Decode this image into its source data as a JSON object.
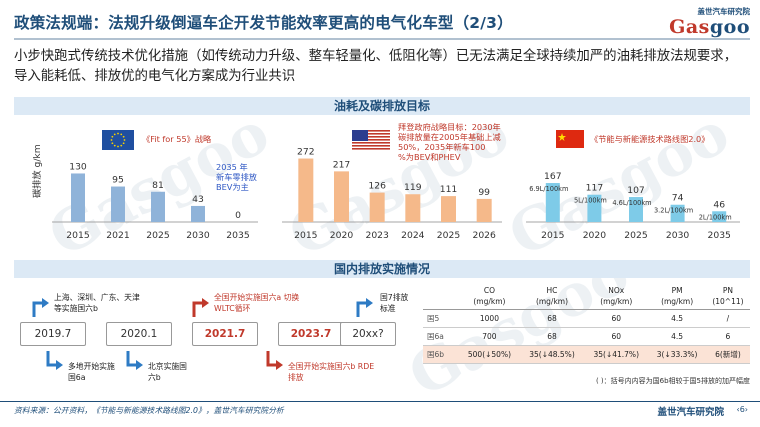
{
  "header": {
    "title": "政策法规端：法规升级倒逼车企开发节能效率更高的电气化车型（2/3）",
    "logo_cn": "盖世汽车研究院",
    "logo_en_a": "Gas",
    "logo_en_b": "goo"
  },
  "subtitle": "小步快跑式传统技术优化措施（如传统动力升级、整车轻量化、低阻化等）已无法满足全球持续加严的油耗排放法规要求，导入能耗低、排放优的电气化方案成为行业共识",
  "section1_title": "油耗及碳排放目标",
  "section2_title": "国内排放实施情况",
  "watermark": "Gasgoo",
  "colors": {
    "eu_bar": "#8fb3d9",
    "us_bar": "#f5b98a",
    "cn_bar": "#7ecbe8",
    "accent_red": "#c0392b",
    "navy": "#1f4e79"
  },
  "chart_data": [
    {
      "type": "bar",
      "region": "EU",
      "flag": "EU flag",
      "policy_note": "《Fit for 55》战略",
      "ylabel": "碳排放 g/km",
      "categories": [
        "2015",
        "2021",
        "2025",
        "2030",
        "2035"
      ],
      "values": [
        130,
        95,
        81,
        43,
        0
      ],
      "value_labels": [
        "130",
        "95",
        "81",
        "43",
        "0"
      ],
      "annotation": "2035 年 新车零排放BEV为主"
    },
    {
      "type": "bar",
      "region": "US",
      "flag": "US flag",
      "policy_note": "拜登政府战略目标：2030年碳排放量在2005年基础上减50%，2035年新车100%为BEV和PHEV",
      "categories": [
        "2015",
        "2020",
        "2023",
        "2024",
        "2025",
        "2026"
      ],
      "values": [
        272,
        217,
        126,
        119,
        111,
        99
      ],
      "value_labels": [
        "272",
        "217",
        "126",
        "119",
        "111",
        "99"
      ]
    },
    {
      "type": "bar",
      "region": "CN",
      "flag": "China flag",
      "policy_note": "《节能与新能源技术路线图2.0》",
      "categories": [
        "2015",
        "2020",
        "2025",
        "2030",
        "2035"
      ],
      "values": [
        167,
        117,
        107,
        74,
        46
      ],
      "value_labels": [
        "167",
        "117",
        "107",
        "74",
        "46"
      ],
      "fuel_labels": [
        "6.9L/100km",
        "5L/100km",
        "4.6L/100km",
        "3.2L/100km",
        "2L/100km"
      ]
    }
  ],
  "timeline": {
    "years": [
      "2019.7",
      "2020.1",
      "2021.7",
      "2023.7",
      "20xx?"
    ],
    "top_notes": [
      "上海、深圳、广东、天津等实施国六b",
      "全国开始实施国六a 切换WLTC循环",
      "国7排放标准"
    ],
    "bottom_notes": [
      "多地开始实施国6a",
      "北京实施国六b",
      "全国开始实施国六b RDE排放"
    ]
  },
  "emission_table": {
    "headers": [
      {
        "name": "CO",
        "unit": "(mg/km)"
      },
      {
        "name": "HC",
        "unit": "(mg/km)"
      },
      {
        "name": "NOx",
        "unit": "(mg/km)"
      },
      {
        "name": "PM",
        "unit": "(mg/km)"
      },
      {
        "name": "PN",
        "unit": "(10^11)"
      }
    ],
    "rows": [
      {
        "label": "国5",
        "cells": [
          "1000",
          "68",
          "60",
          "4.5",
          "/"
        ]
      },
      {
        "label": "国6a",
        "cells": [
          "700",
          "68",
          "60",
          "4.5",
          "6"
        ]
      },
      {
        "label": "国6b",
        "cells": [
          "500(↓50%)",
          "35(↓48.5%)",
          "35(↓41.7%)",
          "3(↓33.3%)",
          "6(新增)"
        ]
      }
    ],
    "note": "( )：括号内内容为国6b相较于国5排放的加严幅度"
  },
  "footer": {
    "source": "资料来源：公开资料，《节能与新能源技术路线图2.0》，盖世汽车研究院分析",
    "brand": "盖世汽车研究院",
    "page": "‹6›"
  }
}
